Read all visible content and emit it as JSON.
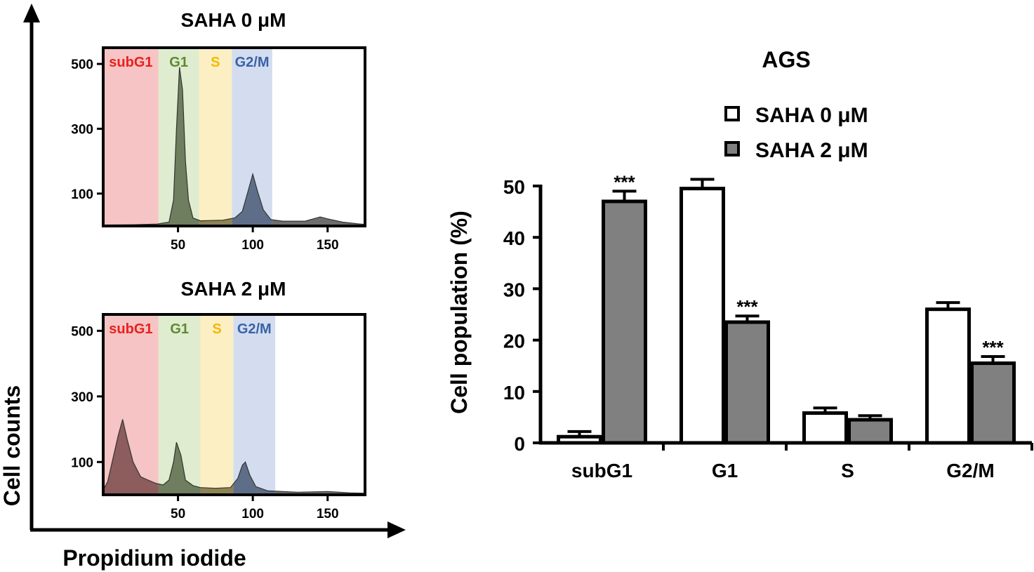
{
  "flow_panel": {
    "y_axis_label": "Cell counts",
    "x_axis_label": "Propidium iodide",
    "region_colors": {
      "subG1": "#f6c4c4",
      "G1": "#dfeccf",
      "S": "#fcefc4",
      "G2/M": "#d3ddef"
    },
    "region_label_colors": {
      "subG1": "#e8201e",
      "G1": "#5f8a2f",
      "S": "#f5b800",
      "G2/M": "#3a62a8"
    },
    "peak_colors": {
      "subG1": "#7a4a4a",
      "G1": "#5a6b4a",
      "S": "#7a7040",
      "G2/M": "#4a5a75",
      "tail": "#555555"
    },
    "histograms": [
      {
        "title": "SAHA 0 μM",
        "region_labels": [
          "subG1",
          "G1",
          "S",
          "G2/M"
        ],
        "region_bounds": [
          [
            0,
            37
          ],
          [
            37,
            64
          ],
          [
            64,
            86
          ],
          [
            86,
            113
          ]
        ],
        "y_ticks": [
          "500",
          "300",
          "100"
        ],
        "y_tick_values": [
          500,
          300,
          100
        ],
        "x_ticks": [
          "50",
          "100",
          "150"
        ],
        "x_tick_values": [
          50,
          100,
          150
        ],
        "xlim": [
          0,
          175
        ],
        "ylim": [
          0,
          550
        ],
        "curve": [
          [
            0,
            3
          ],
          [
            20,
            4
          ],
          [
            36,
            6
          ],
          [
            44,
            12
          ],
          [
            47,
            80
          ],
          [
            49,
            300
          ],
          [
            51,
            490
          ],
          [
            53,
            420
          ],
          [
            55,
            200
          ],
          [
            57,
            80
          ],
          [
            60,
            25
          ],
          [
            65,
            16
          ],
          [
            80,
            18
          ],
          [
            88,
            25
          ],
          [
            93,
            45
          ],
          [
            97,
            110
          ],
          [
            100,
            160
          ],
          [
            103,
            110
          ],
          [
            107,
            50
          ],
          [
            112,
            20
          ],
          [
            120,
            15
          ],
          [
            135,
            15
          ],
          [
            145,
            28
          ],
          [
            150,
            22
          ],
          [
            160,
            12
          ],
          [
            170,
            7
          ],
          [
            175,
            5
          ]
        ]
      },
      {
        "title": "SAHA 2 μM",
        "region_labels": [
          "subG1",
          "G1",
          "S",
          "G2/M"
        ],
        "region_bounds": [
          [
            0,
            37
          ],
          [
            37,
            65
          ],
          [
            65,
            87
          ],
          [
            87,
            115
          ]
        ],
        "y_ticks": [
          "500",
          "300",
          "100"
        ],
        "y_tick_values": [
          500,
          300,
          100
        ],
        "x_ticks": [
          "50",
          "100",
          "150"
        ],
        "x_tick_values": [
          50,
          100,
          150
        ],
        "xlim": [
          0,
          175
        ],
        "ylim": [
          0,
          550
        ],
        "curve": [
          [
            0,
            15
          ],
          [
            3,
            40
          ],
          [
            7,
            120
          ],
          [
            10,
            180
          ],
          [
            13,
            230
          ],
          [
            16,
            170
          ],
          [
            20,
            100
          ],
          [
            25,
            55
          ],
          [
            30,
            45
          ],
          [
            35,
            35
          ],
          [
            40,
            30
          ],
          [
            44,
            45
          ],
          [
            47,
            100
          ],
          [
            49,
            160
          ],
          [
            52,
            120
          ],
          [
            55,
            45
          ],
          [
            60,
            28
          ],
          [
            65,
            22
          ],
          [
            75,
            20
          ],
          [
            85,
            22
          ],
          [
            90,
            50
          ],
          [
            93,
            90
          ],
          [
            95,
            100
          ],
          [
            98,
            60
          ],
          [
            102,
            25
          ],
          [
            110,
            12
          ],
          [
            130,
            8
          ],
          [
            150,
            10
          ],
          [
            165,
            6
          ],
          [
            175,
            5
          ]
        ]
      }
    ]
  },
  "chart_data": {
    "type": "bar",
    "title": "AGS",
    "xlabel": "",
    "ylabel": "Cell population (%)",
    "categories": [
      "subG1",
      "G1",
      "S",
      "G2/M"
    ],
    "ylim": [
      0,
      50
    ],
    "y_ticks": [
      0,
      10,
      20,
      30,
      40,
      50
    ],
    "legend_position": "top",
    "series": [
      {
        "name": "SAHA 0 μM",
        "color": "#ffffff",
        "values": [
          1.2,
          49.5,
          5.8,
          26.0
        ],
        "errors": [
          1.0,
          1.8,
          1.0,
          1.3
        ]
      },
      {
        "name": "SAHA 2 μM",
        "color": "#808080",
        "values": [
          47.0,
          23.5,
          4.5,
          15.5
        ],
        "errors": [
          2.0,
          1.2,
          0.8,
          1.3
        ]
      }
    ],
    "annotations": [
      {
        "series": 1,
        "category": 0,
        "text": "***"
      },
      {
        "series": 1,
        "category": 1,
        "text": "***"
      },
      {
        "series": 1,
        "category": 3,
        "text": "***"
      }
    ]
  }
}
